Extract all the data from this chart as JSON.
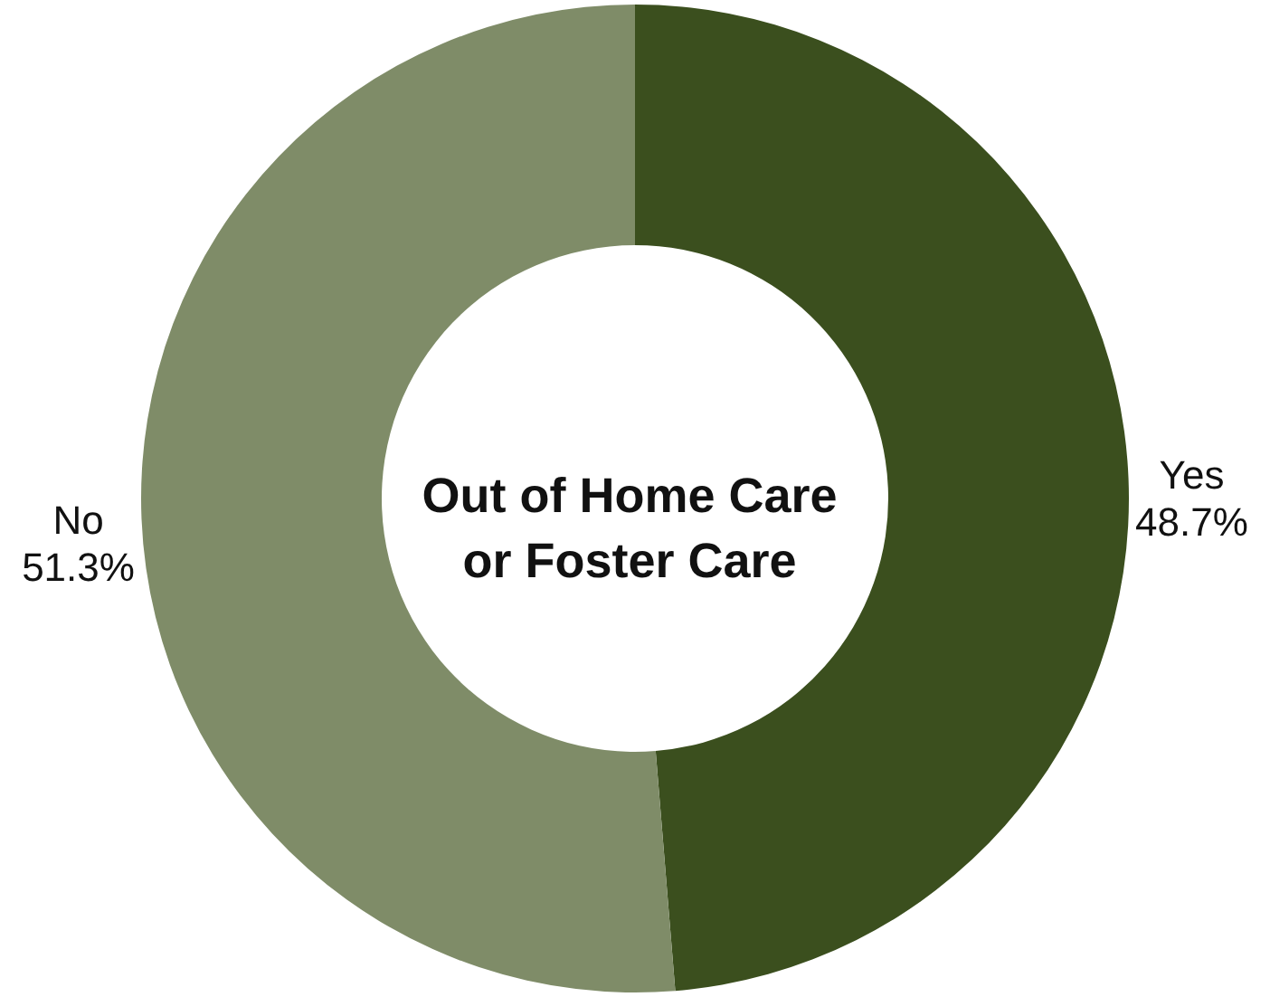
{
  "chart_data": {
    "type": "donut",
    "title": "Out of Home Care or Foster Care",
    "categories": [
      "Yes",
      "No"
    ],
    "values": [
      48.7,
      51.3
    ],
    "colors": [
      "#3b4f1e",
      "#7f8c68"
    ],
    "value_labels": [
      "48.7%",
      "51.3%"
    ]
  }
}
